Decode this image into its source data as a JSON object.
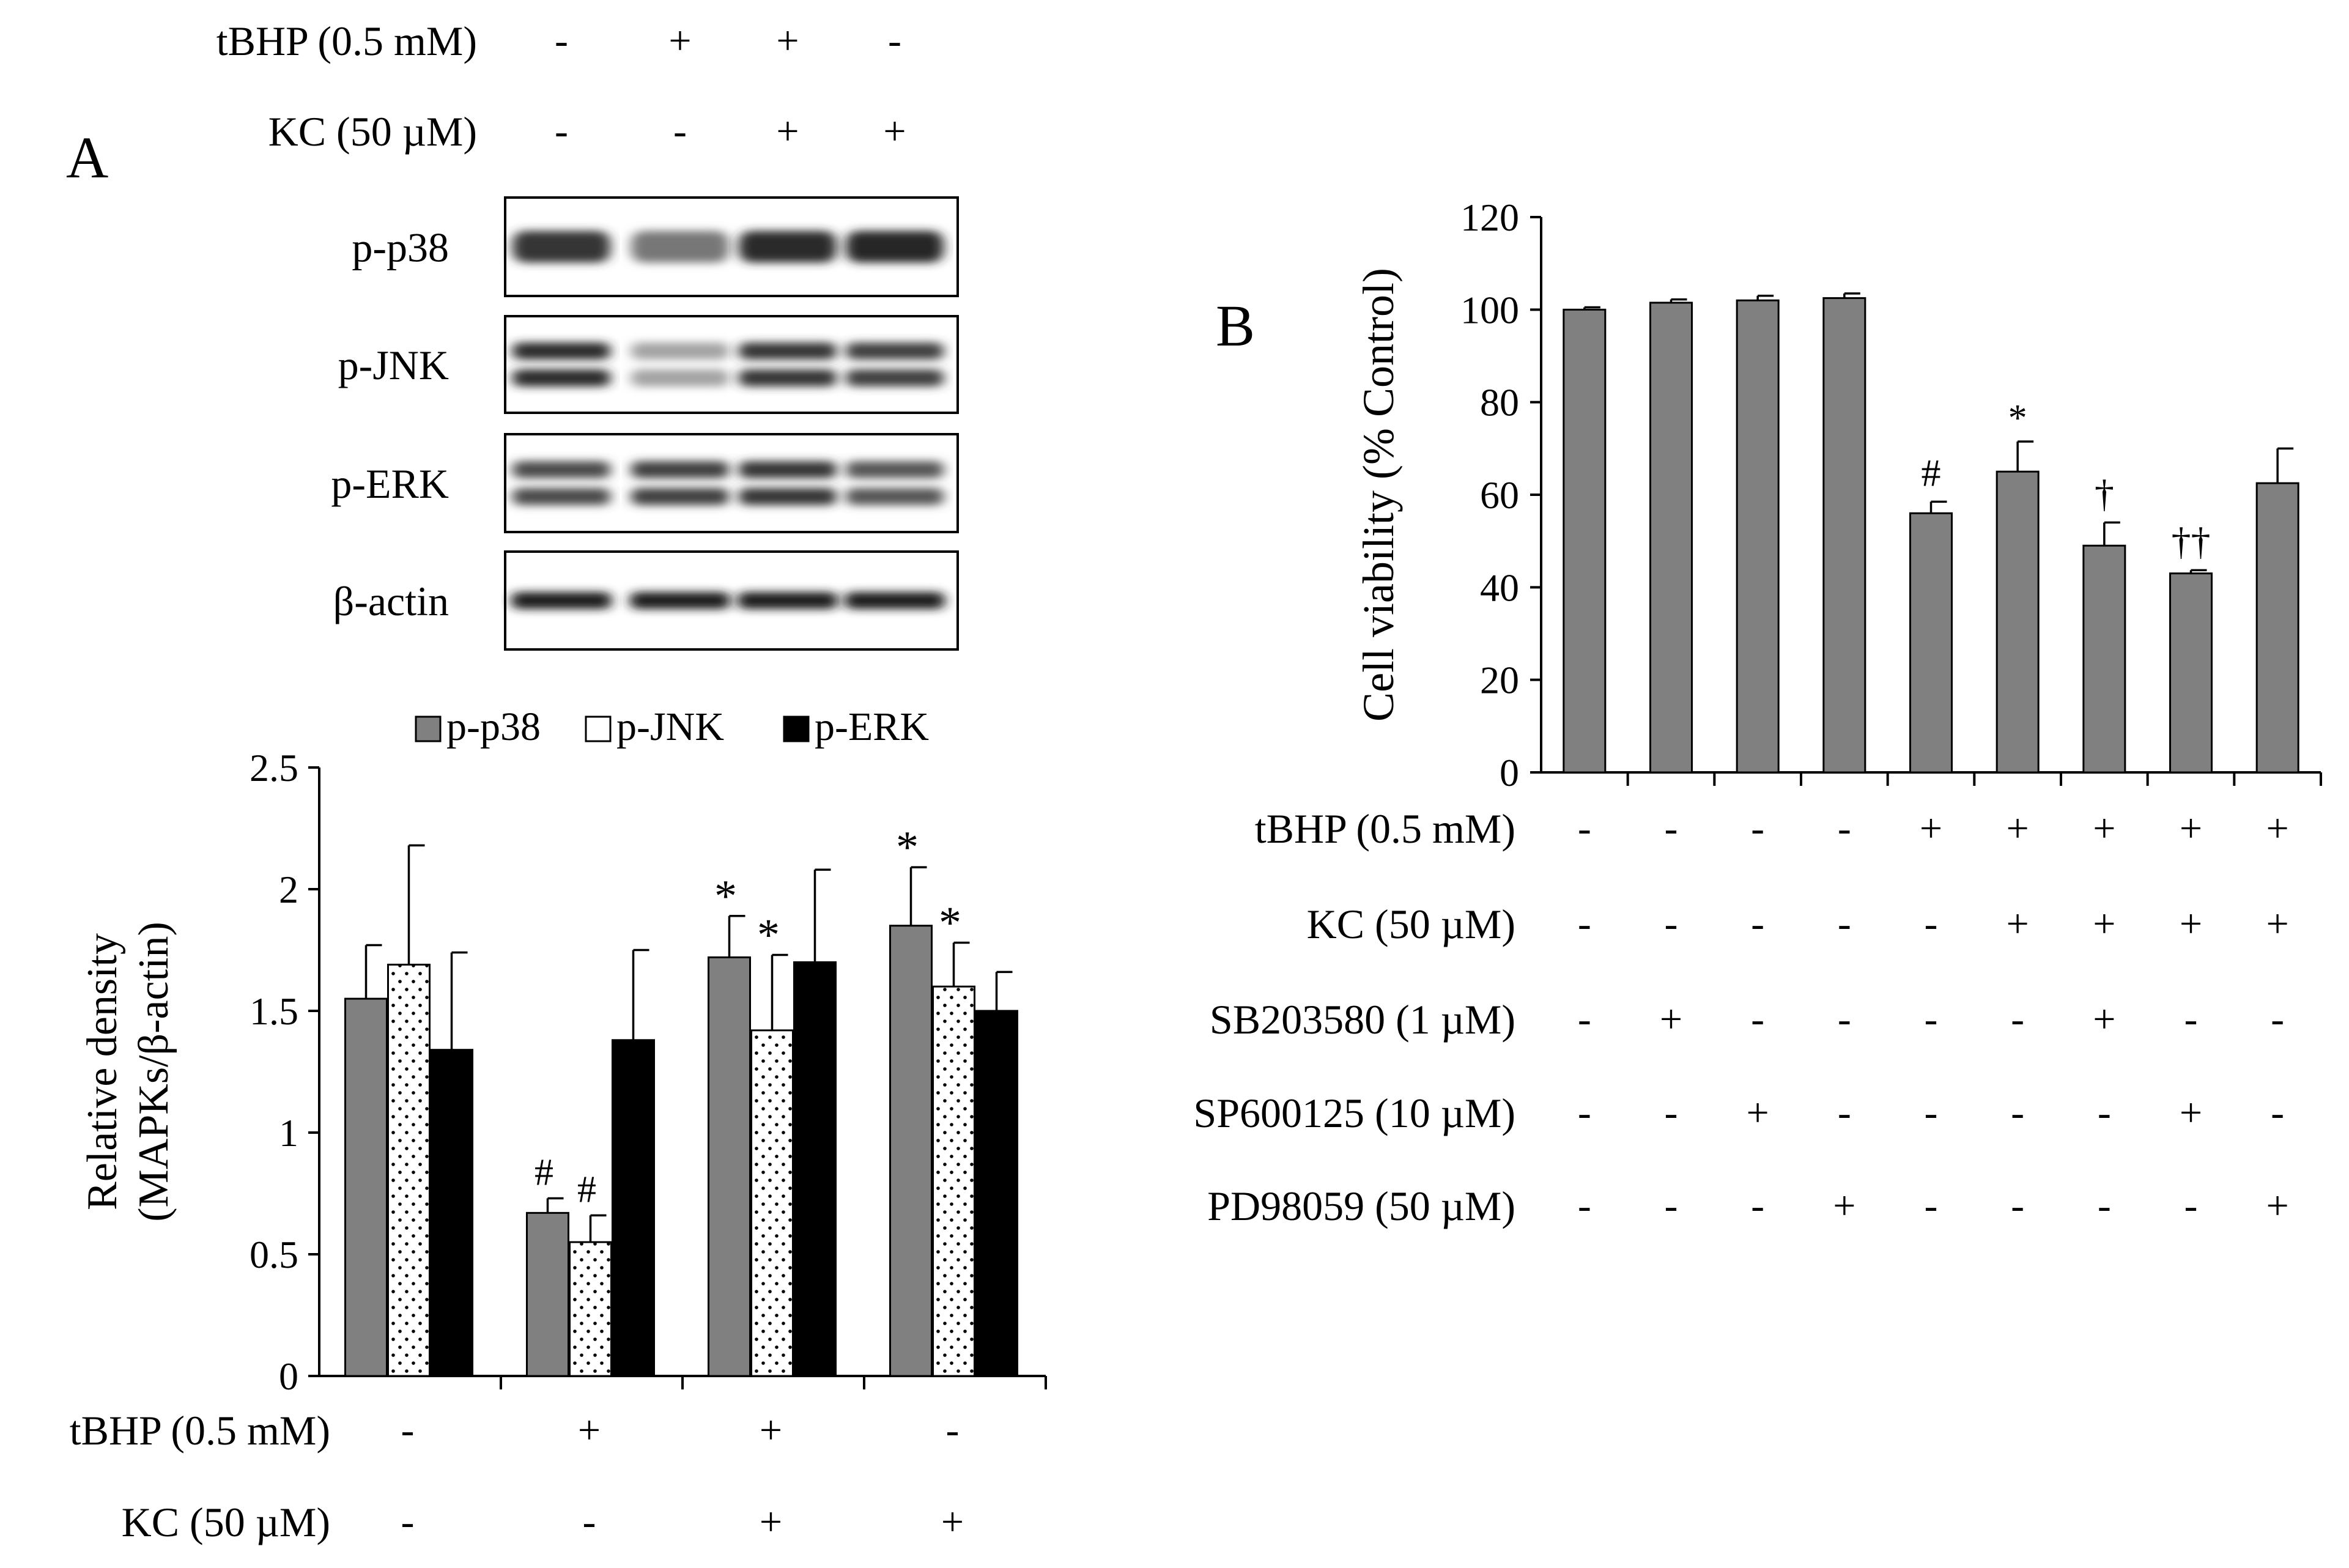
{
  "figure": {
    "panel_a_label": "A",
    "panel_b_label": "B"
  },
  "blot": {
    "treatments": [
      {
        "name": "tBHP (0.5 mM)",
        "signs": [
          "-",
          "+",
          "+",
          "-"
        ]
      },
      {
        "name": "KC (50 µM)",
        "signs": [
          "-",
          "-",
          "+",
          "+"
        ]
      }
    ],
    "bands": [
      "p-p38",
      "p-JNK",
      "p-ERK",
      "β-actin"
    ],
    "intensity": [
      [
        0.85,
        0.55,
        0.9,
        0.92
      ],
      [
        0.9,
        0.35,
        0.85,
        0.8
      ],
      [
        0.75,
        0.8,
        0.85,
        0.7
      ],
      [
        0.95,
        0.95,
        0.95,
        0.95
      ]
    ]
  },
  "chart_data": [
    {
      "type": "bar",
      "panel": "A",
      "ylabel_line1": "Relative density",
      "ylabel_line2": "(MAPKs/β-actin)",
      "ylim": [
        0,
        2.5
      ],
      "yticks": [
        "0",
        "0.5",
        "1",
        "1.5",
        "2",
        "2.5"
      ],
      "legend_position": "top",
      "series": [
        {
          "name": "p-p38",
          "fill": "#808080",
          "pattern": "solid",
          "values": [
            1.55,
            0.67,
            1.72,
            1.85
          ],
          "errors": [
            0.22,
            0.06,
            0.17,
            0.24
          ],
          "marks": [
            "",
            "#",
            "*",
            "*"
          ]
        },
        {
          "name": "p-JNK",
          "fill": "#ffffff",
          "pattern": "dots",
          "values": [
            1.69,
            0.55,
            1.42,
            1.6
          ],
          "errors": [
            0.49,
            0.11,
            0.31,
            0.18
          ],
          "marks": [
            "",
            "#",
            "*",
            "*"
          ]
        },
        {
          "name": "p-ERK",
          "fill": "#000000",
          "pattern": "solid",
          "values": [
            1.34,
            1.38,
            1.7,
            1.5
          ],
          "errors": [
            0.4,
            0.37,
            0.38,
            0.16
          ],
          "marks": [
            "",
            "",
            "",
            ""
          ]
        }
      ],
      "treatments": [
        {
          "name": "tBHP (0.5 mM)",
          "signs": [
            "-",
            "+",
            "+",
            "-"
          ]
        },
        {
          "name": "KC (50 µM)",
          "signs": [
            "-",
            "-",
            "+",
            "+"
          ]
        }
      ]
    },
    {
      "type": "bar",
      "panel": "B",
      "ylabel": "Cell viability (% Control)",
      "ylim": [
        0,
        120
      ],
      "yticks": [
        "0",
        "20",
        "40",
        "60",
        "80",
        "100",
        "120"
      ],
      "bar_color": "#808080",
      "values": [
        100,
        101.5,
        102,
        102.5,
        56,
        65,
        49,
        43,
        62.5
      ],
      "errors": [
        0.5,
        0.7,
        1,
        1,
        2.5,
        6.5,
        5,
        0.7,
        7.5
      ],
      "marks": [
        "",
        "",
        "",
        "",
        "#",
        "*",
        "†",
        "††",
        ""
      ],
      "treatments": [
        {
          "name": "tBHP (0.5 mM)",
          "signs": [
            "-",
            "-",
            "-",
            "-",
            "+",
            "+",
            "+",
            "+",
            "+"
          ]
        },
        {
          "name": "KC (50 µM)",
          "signs": [
            "-",
            "-",
            "-",
            "-",
            "-",
            "+",
            "+",
            "+",
            "+"
          ]
        },
        {
          "name": "SB203580 (1 µM)",
          "signs": [
            "-",
            "+",
            "-",
            "-",
            "-",
            "-",
            "+",
            "-",
            "-"
          ]
        },
        {
          "name": "SP600125 (10 µM)",
          "signs": [
            "-",
            "-",
            "+",
            "-",
            "-",
            "-",
            "-",
            "+",
            "-"
          ]
        },
        {
          "name": "PD98059 (50 µM)",
          "signs": [
            "-",
            "-",
            "-",
            "+",
            "-",
            "-",
            "-",
            "-",
            "+"
          ]
        }
      ]
    }
  ]
}
